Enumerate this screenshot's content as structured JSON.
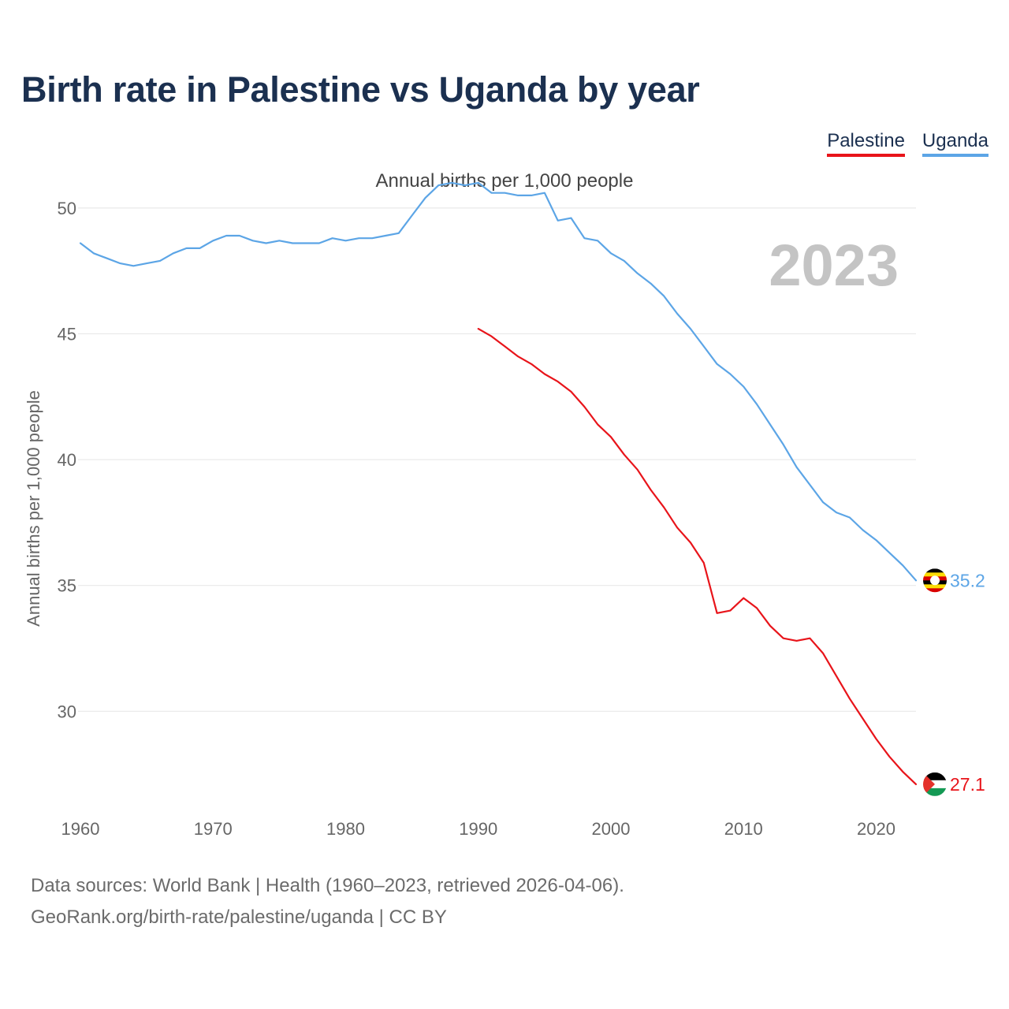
{
  "chart_data": {
    "type": "line",
    "title": "Birth rate in Palestine vs Uganda by year",
    "subtitle": "Annual births per 1,000 people",
    "ylabel": "Annual births per 1,000 people",
    "xlabel": "",
    "year_label": "2023",
    "xlim": [
      1960,
      2023
    ],
    "ylim": [
      26,
      52
    ],
    "x_ticks": [
      1960,
      1970,
      1980,
      1990,
      2000,
      2010,
      2020
    ],
    "y_ticks": [
      30,
      35,
      40,
      45,
      50
    ],
    "grid": true,
    "legend_position": "top-right",
    "series": [
      {
        "name": "Palestine",
        "color": "#e8141a",
        "end_label": "27.1",
        "flag_icon": "palestine-flag-icon",
        "points": [
          [
            1990,
            45.2
          ],
          [
            1991,
            44.9
          ],
          [
            1992,
            44.5
          ],
          [
            1993,
            44.1
          ],
          [
            1994,
            43.8
          ],
          [
            1995,
            43.4
          ],
          [
            1996,
            43.1
          ],
          [
            1997,
            42.7
          ],
          [
            1998,
            42.1
          ],
          [
            1999,
            41.4
          ],
          [
            2000,
            40.9
          ],
          [
            2001,
            40.2
          ],
          [
            2002,
            39.6
          ],
          [
            2003,
            38.8
          ],
          [
            2004,
            38.1
          ],
          [
            2005,
            37.3
          ],
          [
            2006,
            36.7
          ],
          [
            2007,
            35.9
          ],
          [
            2008,
            33.9
          ],
          [
            2009,
            34.0
          ],
          [
            2010,
            34.5
          ],
          [
            2011,
            34.1
          ],
          [
            2012,
            33.4
          ],
          [
            2013,
            32.9
          ],
          [
            2014,
            32.8
          ],
          [
            2015,
            32.9
          ],
          [
            2016,
            32.3
          ],
          [
            2017,
            31.4
          ],
          [
            2018,
            30.5
          ],
          [
            2019,
            29.7
          ],
          [
            2020,
            28.9
          ],
          [
            2021,
            28.2
          ],
          [
            2022,
            27.6
          ],
          [
            2023,
            27.1
          ]
        ]
      },
      {
        "name": "Uganda",
        "color": "#5ca5e6",
        "end_label": "35.2",
        "flag_icon": "uganda-flag-icon",
        "points": [
          [
            1960,
            48.6
          ],
          [
            1961,
            48.2
          ],
          [
            1962,
            48.0
          ],
          [
            1963,
            47.8
          ],
          [
            1964,
            47.7
          ],
          [
            1965,
            47.8
          ],
          [
            1966,
            47.9
          ],
          [
            1967,
            48.2
          ],
          [
            1968,
            48.4
          ],
          [
            1969,
            48.4
          ],
          [
            1970,
            48.7
          ],
          [
            1971,
            48.9
          ],
          [
            1972,
            48.9
          ],
          [
            1973,
            48.7
          ],
          [
            1974,
            48.6
          ],
          [
            1975,
            48.7
          ],
          [
            1976,
            48.6
          ],
          [
            1977,
            48.6
          ],
          [
            1978,
            48.6
          ],
          [
            1979,
            48.8
          ],
          [
            1980,
            48.7
          ],
          [
            1981,
            48.8
          ],
          [
            1982,
            48.8
          ],
          [
            1983,
            48.9
          ],
          [
            1984,
            49.0
          ],
          [
            1985,
            49.7
          ],
          [
            1986,
            50.4
          ],
          [
            1987,
            50.9
          ],
          [
            1988,
            51.0
          ],
          [
            1989,
            50.9
          ],
          [
            1990,
            51.0
          ],
          [
            1991,
            50.6
          ],
          [
            1992,
            50.6
          ],
          [
            1993,
            50.5
          ],
          [
            1994,
            50.5
          ],
          [
            1995,
            50.6
          ],
          [
            1996,
            49.5
          ],
          [
            1997,
            49.6
          ],
          [
            1998,
            48.8
          ],
          [
            1999,
            48.7
          ],
          [
            2000,
            48.2
          ],
          [
            2001,
            47.9
          ],
          [
            2002,
            47.4
          ],
          [
            2003,
            47.0
          ],
          [
            2004,
            46.5
          ],
          [
            2005,
            45.8
          ],
          [
            2006,
            45.2
          ],
          [
            2007,
            44.5
          ],
          [
            2008,
            43.8
          ],
          [
            2009,
            43.4
          ],
          [
            2010,
            42.9
          ],
          [
            2011,
            42.2
          ],
          [
            2012,
            41.4
          ],
          [
            2013,
            40.6
          ],
          [
            2014,
            39.7
          ],
          [
            2015,
            39.0
          ],
          [
            2016,
            38.3
          ],
          [
            2017,
            37.9
          ],
          [
            2018,
            37.7
          ],
          [
            2019,
            37.2
          ],
          [
            2020,
            36.8
          ],
          [
            2021,
            36.3
          ],
          [
            2022,
            35.8
          ],
          [
            2023,
            35.2
          ]
        ]
      }
    ]
  },
  "source": {
    "line1": "Data sources: World Bank | Health (1960–2023, retrieved 2026-04-06).",
    "line2": "GeoRank.org/birth-rate/palestine/uganda | CC BY"
  }
}
